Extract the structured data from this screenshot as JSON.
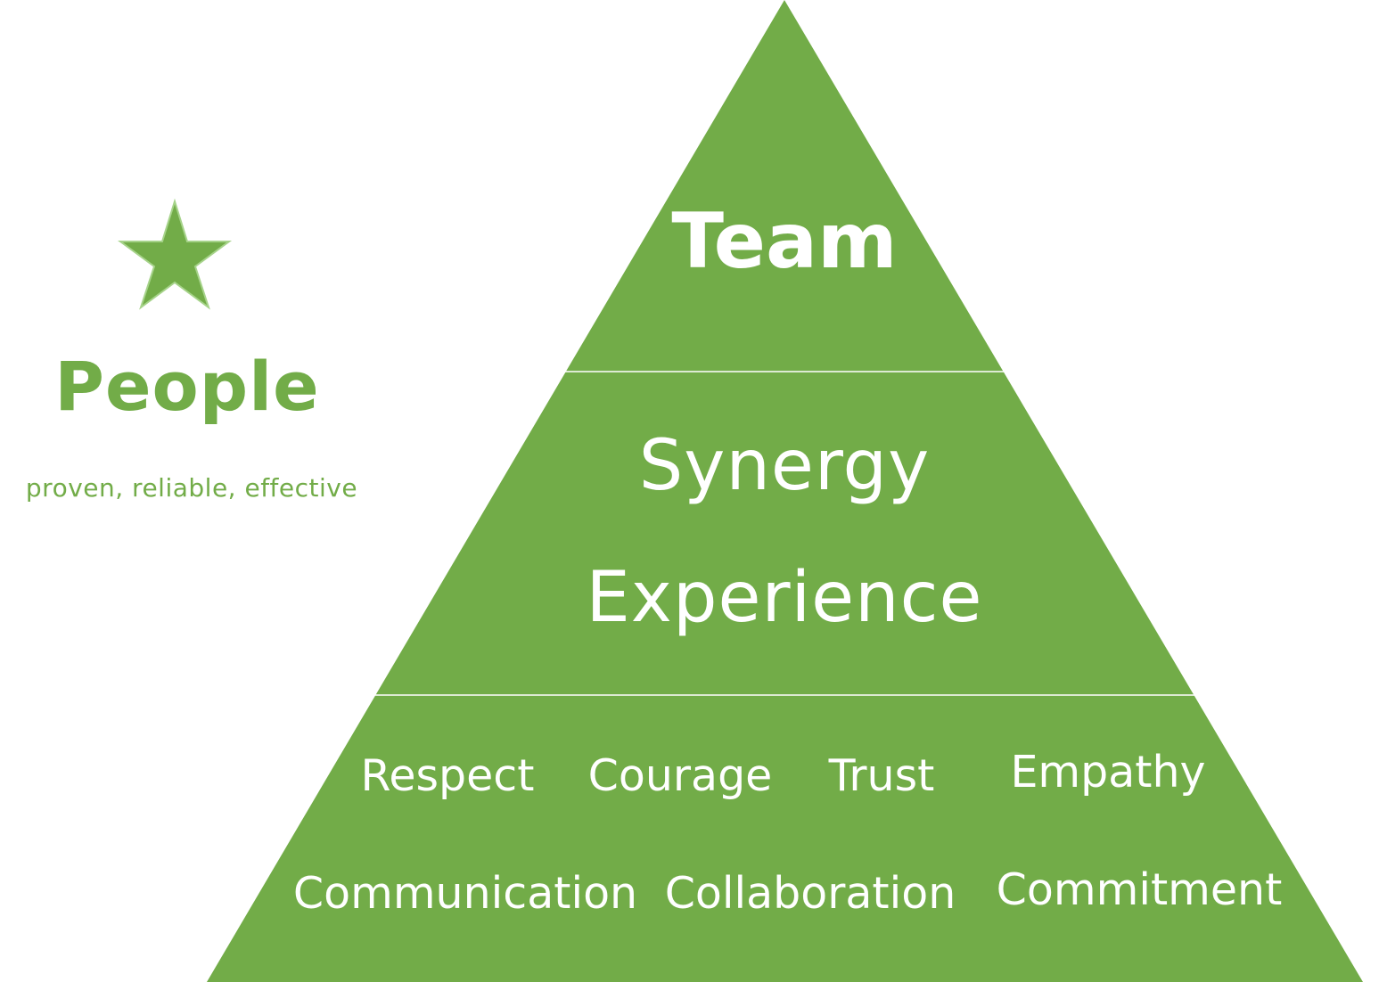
{
  "colors": {
    "pyramid_fill": "#72ac48",
    "brand_green": "#72ac48",
    "divider": "#ffffff",
    "text_on_pyramid": "#ffffff"
  },
  "brand": {
    "icon": "star-icon",
    "title": "People",
    "tagline": "proven, reliable, effective"
  },
  "pyramid": {
    "top": {
      "label": "Team"
    },
    "middle": {
      "lines": [
        "Synergy",
        "Experience"
      ]
    },
    "base": {
      "row1": [
        "Respect",
        "Courage",
        "Trust",
        "Empathy"
      ],
      "row2": [
        "Communication",
        "Collaboration",
        "Commitment"
      ]
    }
  }
}
